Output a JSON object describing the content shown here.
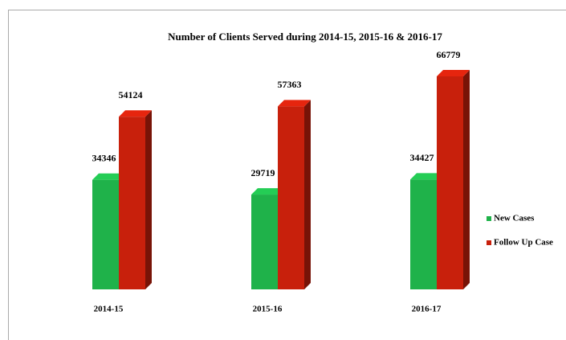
{
  "chart_data": {
    "type": "bar3d",
    "title": "Number of Clients Served during  2014-15, 2015-16 & 2016-17",
    "categories": [
      "2014-15",
      "2015-16",
      "2016-17"
    ],
    "series": [
      {
        "name": "New Cases",
        "color": "#1fb24a",
        "values": [
          34346,
          29719,
          34427
        ]
      },
      {
        "name": "Follow Up Case",
        "color": "#c8200c",
        "values": [
          54124,
          57363,
          66779
        ]
      }
    ],
    "legend": "right"
  }
}
